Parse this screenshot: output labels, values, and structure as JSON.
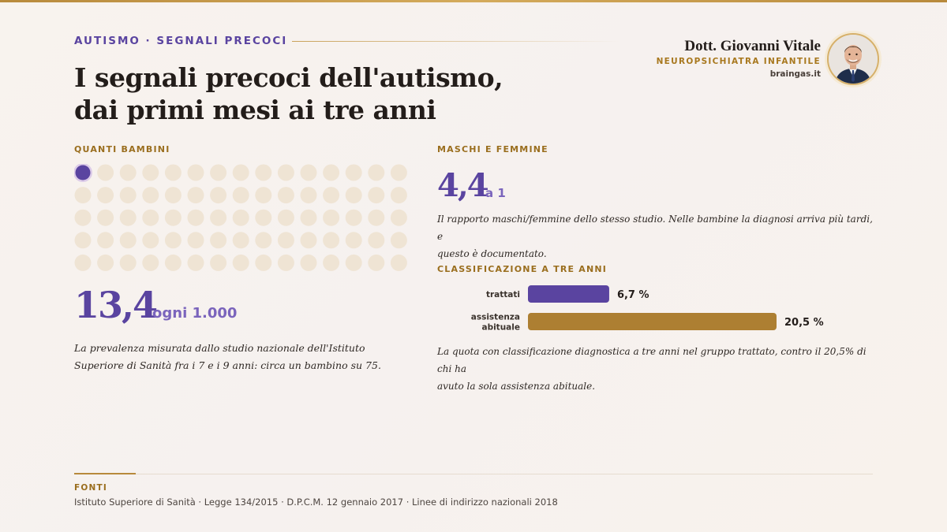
{
  "header": {
    "kicker": "AUTISMO · SEGNALI PRECOCI",
    "title_line1": "I segnali precoci dell'autismo,",
    "title_line2": "dai primi mesi ai tre anni"
  },
  "author": {
    "name": "Dott. Giovanni Vitale",
    "role": "NEUROPSICHIATRA INFANTILE",
    "site": "braingas.it",
    "avatar_icon": "doctor-portrait"
  },
  "prevalence": {
    "label": "QUANTI BAMBINI",
    "value": "13,4",
    "unit": "ogni 1.000",
    "note_line1": "La prevalenza misurata dallo studio nazionale dell'Istituto",
    "note_line2": "Superiore di Sanità fra i 7 e i 9 anni: circa un bambino su 75."
  },
  "ratio": {
    "label": "MASCHI E FEMMINE",
    "value": "4,4",
    "unit": "a 1",
    "note_line1": "Il rapporto maschi/femmine dello stesso studio. Nelle bambine la diagnosi arriva più tardi, e",
    "note_line2": "questo è documentato."
  },
  "classification": {
    "label": "CLASSIFICAZIONE A TRE ANNI",
    "note_line1": "La quota con classificazione diagnostica a tre anni nel gruppo trattato, contro il 20,5% di chi ha",
    "note_line2": "avuto la sola assistenza abituale."
  },
  "chart_data": [
    {
      "type": "waffle",
      "total": 75,
      "highlighted": 1,
      "rows": 5,
      "columns": 15,
      "colors": {
        "highlight": "#5a44a0",
        "base": "#efe4d4"
      }
    },
    {
      "type": "bar",
      "orientation": "horizontal",
      "categories": [
        [
          "trattati"
        ],
        [
          "assistenza",
          "abituale"
        ]
      ],
      "values": [
        6.7,
        20.5
      ],
      "value_labels": [
        "6,7 %",
        "20,5 %"
      ],
      "xlim": [
        0,
        20.5
      ],
      "colors": [
        "#5a44a0",
        "#ad7f32"
      ],
      "grid": false
    }
  ],
  "footer": {
    "label": "FONTI",
    "text": "Istituto Superiore di Sanità · Legge 134/2015 · D.P.C.M. 12 gennaio 2017 · Linee di indirizzo nazionali 2018"
  }
}
